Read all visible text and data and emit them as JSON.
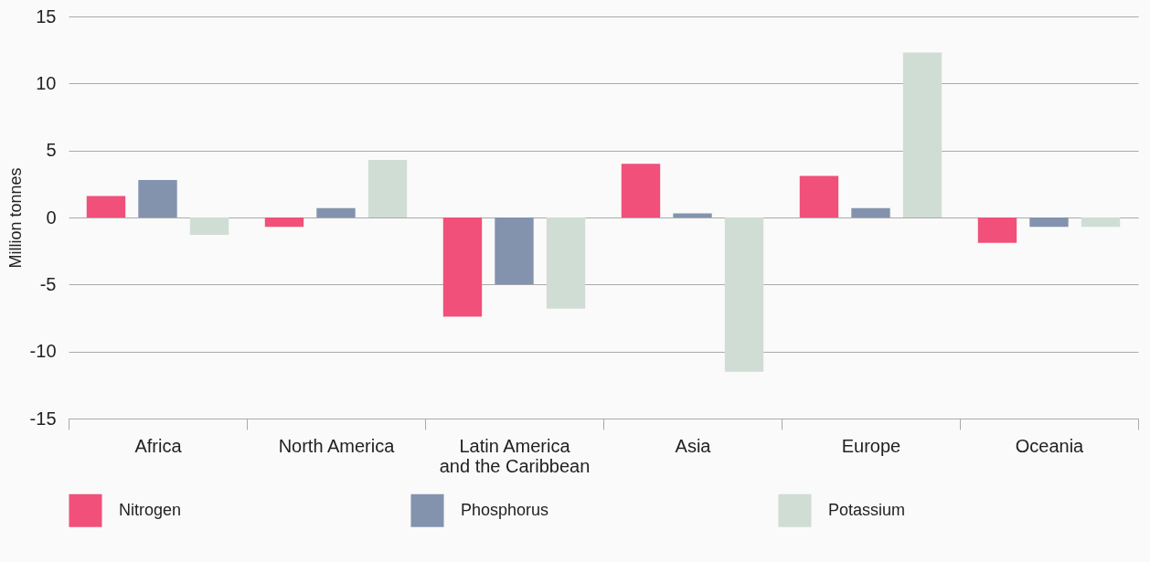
{
  "chart_data": {
    "type": "bar",
    "ylabel": "Million tonnes",
    "categories": [
      "Africa",
      "North America",
      "Latin America\nand the Caribbean",
      "Asia",
      "Europe",
      "Oceania"
    ],
    "series": [
      {
        "name": "Nitrogen",
        "color": "#f0507a",
        "values": [
          1.6,
          -0.7,
          -7.4,
          4.0,
          3.1,
          -1.9
        ]
      },
      {
        "name": "Phosphorus",
        "color": "#8393ae",
        "values": [
          2.8,
          0.7,
          -5.0,
          0.3,
          0.7,
          -0.7
        ]
      },
      {
        "name": "Potassium",
        "color": "#d0ddd5",
        "values": [
          -1.3,
          4.3,
          -6.8,
          -11.5,
          12.3,
          -0.7
        ]
      }
    ],
    "ylim": [
      -15,
      15
    ],
    "yticks": [
      -15,
      -10,
      -5,
      0,
      5,
      10,
      15
    ],
    "grid": "y",
    "legend": "bottom"
  }
}
